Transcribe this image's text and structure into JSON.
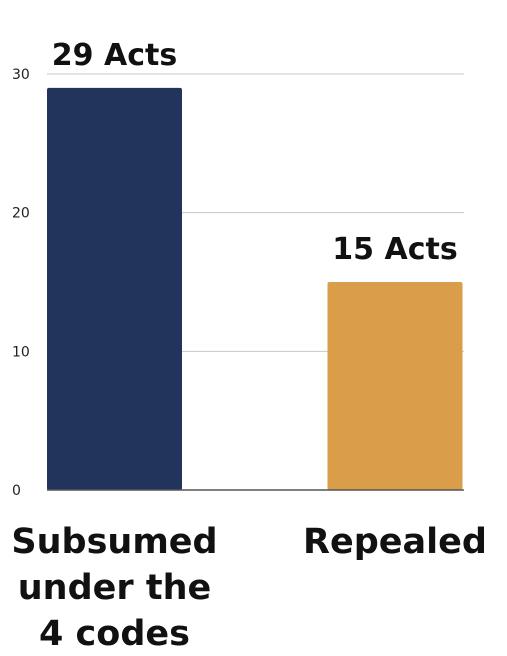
{
  "chart_data": {
    "type": "bar",
    "title": "",
    "xlabel": "",
    "ylabel": "",
    "categories": [
      "Subsumed under the 4 codes",
      "Repealed"
    ],
    "category_label_lines": [
      [
        "Subsumed",
        "under the",
        "4 codes"
      ],
      [
        "Repealed"
      ]
    ],
    "values": [
      29,
      15
    ],
    "data_labels": [
      "29 Acts",
      "15 Acts"
    ],
    "ylim": [
      0,
      30
    ],
    "yticks": [
      0,
      10,
      20,
      30
    ],
    "ytick_labels": [
      "0",
      "10",
      "20",
      "30"
    ],
    "grid": true,
    "legend": "none",
    "colors": [
      "#22335c",
      "#da9e4a"
    ],
    "grid_color": "#c8c8c8",
    "axis_color": "#555555"
  }
}
